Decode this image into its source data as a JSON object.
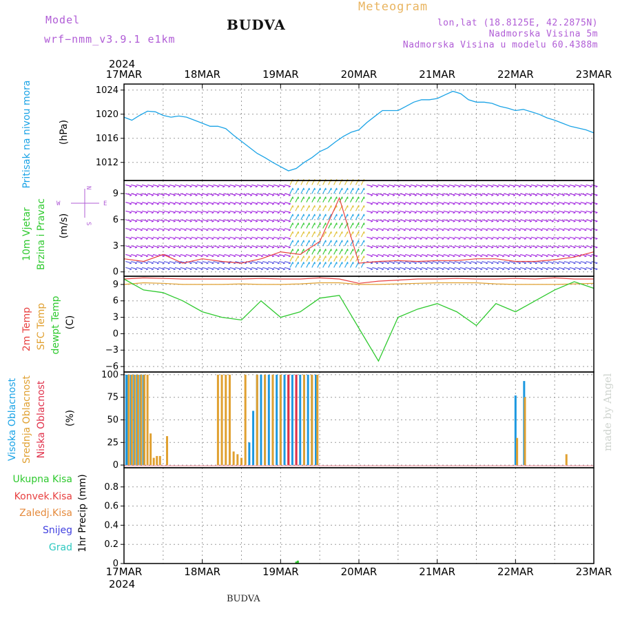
{
  "header": {
    "model_label": "Model",
    "model_name": "wrf−nmm_v3.9.1  e1km",
    "station": "BUDVA",
    "product": "Meteogram",
    "lonlat": "lon,lat (18.8125E, 42.2875N)",
    "elevation": "Nadmorska Visina 5m",
    "model_elevation": "Nadmorska Visina u modelu 60.4388m",
    "bottom_station": "BUDVA",
    "credit": "made by Angel"
  },
  "colors": {
    "pressure": "#1aa3e6",
    "temp2m": "#e84040",
    "sfc": "#e0a030",
    "dewpt": "#2ec92e",
    "high_cloud": "#1c98e0",
    "mid_cloud": "#e0a030",
    "low_cloud": "#e0304a",
    "wind_primary": "#a020e0",
    "label_purple": "#b05cd6"
  },
  "chart_data": [
    {
      "type": "line",
      "panel": "pressure",
      "ylabel_left": "Pritisak na nivou mora",
      "ylabel_unit": "(hPa)",
      "year_label": "2024",
      "date_ticks": [
        "17MAR",
        "18MAR",
        "19MAR",
        "20MAR",
        "21MAR",
        "22MAR",
        "23MAR"
      ],
      "ylim": [
        1009,
        1025
      ],
      "yticks": [
        1012,
        1016,
        1020,
        1024
      ],
      "x_days": [
        0,
        0.1,
        0.2,
        0.3,
        0.4,
        0.5,
        0.6,
        0.7,
        0.8,
        0.9,
        1.0,
        1.1,
        1.2,
        1.3,
        1.4,
        1.5,
        1.6,
        1.7,
        1.8,
        1.9,
        2.0,
        2.1,
        2.2,
        2.3,
        2.4,
        2.5,
        2.6,
        2.7,
        2.8,
        2.9,
        3.0,
        3.1,
        3.2,
        3.3,
        3.4,
        3.5,
        3.6,
        3.7,
        3.8,
        3.9,
        4.0,
        4.1,
        4.2,
        4.3,
        4.4,
        4.5,
        4.6,
        4.7,
        4.8,
        4.9,
        5.0,
        5.1,
        5.2,
        5.3,
        5.4,
        5.5,
        5.6,
        5.7,
        5.8,
        5.9,
        6.0
      ],
      "series": [
        {
          "values": [
            1019.5,
            1019.0,
            1019.8,
            1020.5,
            1020.4,
            1019.8,
            1019.5,
            1019.7,
            1019.5,
            1019.0,
            1018.5,
            1018.0,
            1018.0,
            1017.6,
            1016.5,
            1015.5,
            1014.5,
            1013.5,
            1012.8,
            1012.0,
            1011.3,
            1010.6,
            1011.0,
            1012.0,
            1012.8,
            1013.8,
            1014.4,
            1015.4,
            1016.3,
            1017.0,
            1017.4,
            1018.6,
            1019.6,
            1020.6,
            1020.6,
            1020.6,
            1021.3,
            1022.0,
            1022.4,
            1022.4,
            1022.6,
            1023.2,
            1023.8,
            1023.4,
            1022.4,
            1022.0,
            1022.0,
            1021.8,
            1021.3,
            1021.0,
            1020.6,
            1020.8,
            1020.4,
            1020.0,
            1019.4,
            1019.0,
            1018.5,
            1018.0,
            1017.7,
            1017.4,
            1016.9
          ]
        }
      ]
    },
    {
      "type": "line",
      "panel": "wind",
      "ylabel_left": "10m Vjetar",
      "ylabel_left2": "Brzina i Pravac",
      "ylabel_unit": "(m/s)",
      "compass": {
        "n": "N",
        "e": "E",
        "w": "W",
        "s": "S"
      },
      "ylim": [
        -0.5,
        10.5
      ],
      "yticks": [
        0,
        3,
        6,
        9
      ],
      "x_days": [
        0,
        0.25,
        0.5,
        0.75,
        1.0,
        1.25,
        1.5,
        1.75,
        2.0,
        2.25,
        2.5,
        2.75,
        3.0,
        3.25,
        3.5,
        3.75,
        4.0,
        4.25,
        4.5,
        4.75,
        5.0,
        5.25,
        5.5,
        5.75,
        6.0
      ],
      "series": [
        {
          "values": [
            1.5,
            1.2,
            2.0,
            1.0,
            1.5,
            1.2,
            1.0,
            1.5,
            2.3,
            2.0,
            3.5,
            8.5,
            1.0,
            1.2,
            1.3,
            1.2,
            1.3,
            1.3,
            1.5,
            1.5,
            1.2,
            1.2,
            1.4,
            1.7,
            2.3
          ]
        }
      ]
    },
    {
      "type": "line",
      "panel": "temperature",
      "ylabel_left": "2m Temp",
      "ylabel_left2": "SFC Temp",
      "ylabel_left3": "dewpt Temp",
      "ylabel_unit": "(C)",
      "ylim": [
        -7,
        10.5
      ],
      "yticks": [
        -6,
        -3,
        0,
        3,
        6,
        9
      ],
      "x_days": [
        0,
        0.25,
        0.5,
        0.75,
        1.0,
        1.25,
        1.5,
        1.75,
        2.0,
        2.25,
        2.5,
        2.75,
        3.0,
        3.25,
        3.5,
        3.75,
        4.0,
        4.25,
        4.5,
        4.75,
        5.0,
        5.25,
        5.5,
        5.75,
        6.0
      ],
      "series": [
        {
          "values": [
            10.0,
            10.2,
            10.1,
            10.0,
            10.0,
            10.0,
            10.0,
            10.1,
            10.0,
            10.0,
            10.2,
            10.0,
            9.2,
            9.6,
            9.8,
            10.0,
            10.0,
            10.1,
            10.0,
            10.0,
            10.1,
            10.0,
            10.2,
            10.0,
            10.0
          ]
        },
        {
          "values": [
            9.0,
            9.3,
            9.2,
            9.0,
            9.0,
            9.0,
            9.1,
            9.0,
            9.0,
            9.1,
            9.3,
            9.3,
            9.0,
            9.0,
            9.1,
            9.2,
            9.3,
            9.3,
            9.3,
            9.1,
            9.0,
            9.0,
            9.0,
            9.1,
            9.2
          ]
        },
        {
          "values": [
            10.0,
            8.0,
            7.5,
            6.0,
            4.0,
            3.0,
            2.5,
            6.0,
            3.0,
            4.0,
            6.5,
            7.0,
            1.0,
            -5.0,
            3.0,
            4.5,
            5.5,
            4.0,
            1.5,
            5.5,
            4.0,
            6.0,
            8.0,
            9.5,
            8.3
          ]
        }
      ]
    },
    {
      "type": "bar",
      "panel": "clouds",
      "ylabel_left": "Visoka Oblacnost",
      "ylabel_left2": "Srednja Oblacnost",
      "ylabel_left3": "Niska  Oblacnost",
      "ylabel_unit": "(%)",
      "ylim": [
        -3,
        103
      ],
      "yticks": [
        0,
        25,
        50,
        75,
        100
      ],
      "series": [
        {
          "x_days": [
            0.03,
            0.05,
            0.09,
            0.13,
            0.17,
            0.21,
            0.25,
            1.6,
            1.65,
            1.7,
            1.75,
            1.8,
            1.85,
            1.9,
            1.95,
            2.0,
            2.05,
            2.1,
            2.15,
            2.2,
            2.25,
            2.3,
            2.35,
            2.4,
            2.45,
            5.0,
            5.11
          ],
          "values": [
            100,
            100,
            100,
            100,
            100,
            100,
            100,
            25,
            60,
            100,
            100,
            100,
            100,
            100,
            100,
            100,
            100,
            100,
            100,
            100,
            100,
            100,
            100,
            100,
            100,
            77,
            93
          ]
        },
        {
          "x_days": [
            0.06,
            0.1,
            0.14,
            0.18,
            0.22,
            0.26,
            0.3,
            0.34,
            0.38,
            0.42,
            0.46,
            0.55,
            1.2,
            1.25,
            1.3,
            1.35,
            1.4,
            1.45,
            1.5,
            1.55,
            1.7,
            1.8,
            1.9,
            2.0,
            2.1,
            2.2,
            2.3,
            2.4,
            2.47,
            5.02,
            5.12,
            5.65
          ],
          "values": [
            100,
            100,
            100,
            100,
            100,
            100,
            100,
            35,
            8,
            10,
            10,
            32,
            100,
            100,
            100,
            100,
            15,
            12,
            8,
            100,
            100,
            100,
            100,
            100,
            100,
            100,
            100,
            100,
            100,
            30,
            75,
            12
          ]
        },
        {
          "x_days": [
            2.1,
            2.2
          ],
          "values": [
            100,
            100
          ]
        }
      ]
    },
    {
      "type": "bar",
      "panel": "precip",
      "ylabel_unit": "1hr Precip (mm)",
      "legend": [
        "Ukupna Kisa",
        "Konvek.Kisa",
        "Zaledj.Kisa",
        "Snijeg",
        "Grad"
      ],
      "ylim": [
        0,
        1.0
      ],
      "yticks": [
        0,
        0.2,
        0.4,
        0.6,
        0.8
      ],
      "series": [
        {
          "x_days": [
            2.2,
            2.22
          ],
          "values": [
            0.02,
            0.03
          ]
        }
      ]
    }
  ]
}
